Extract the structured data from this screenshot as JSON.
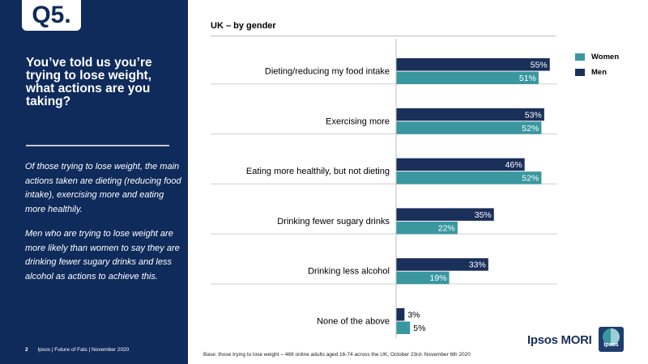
{
  "slide": {
    "question_badge": "Q5.",
    "question": "You’ve told us you’re trying to lose weight, what actions are you taking?",
    "summary_1": "Of those trying to lose weight, the main actions taken are dieting (reducing food intake), exercising more and eating more healthily.",
    "summary_2": "Men who are trying to lose weight are more likely than women to say they are drinking fewer sugary drinks and less alcohol as actions to achieve this.",
    "page_number": "2",
    "footer": "Ipsos | Future of Fats | November 2020",
    "base_note": "Base: those trying to lose weight – 469 online adults aged 16-74 across the UK, October 23rd- November 6th 2020",
    "brand": "Ipsos MORI",
    "logo_text": "Ipsos"
  },
  "colors": {
    "sidebar": "#0f2b5b",
    "men": "#1a2f5a",
    "women": "#3a97a0"
  },
  "chart_data": {
    "type": "bar",
    "orientation": "horizontal",
    "title": "UK – by gender",
    "categories": [
      "Dieting/reducing my food intake",
      "Exercising more",
      "Eating more healthily, but not dieting",
      "Drinking fewer sugary drinks",
      "Drinking less alcohol",
      "None of the above"
    ],
    "series": [
      {
        "name": "Men",
        "color": "#1a2f5a",
        "values": [
          55,
          53,
          46,
          35,
          33,
          3
        ]
      },
      {
        "name": "Women",
        "color": "#3a97a0",
        "values": [
          51,
          52,
          52,
          22,
          19,
          5
        ]
      }
    ],
    "legend": [
      "Women",
      "Men"
    ],
    "value_suffix": "%",
    "xlim": [
      0,
      100
    ]
  }
}
